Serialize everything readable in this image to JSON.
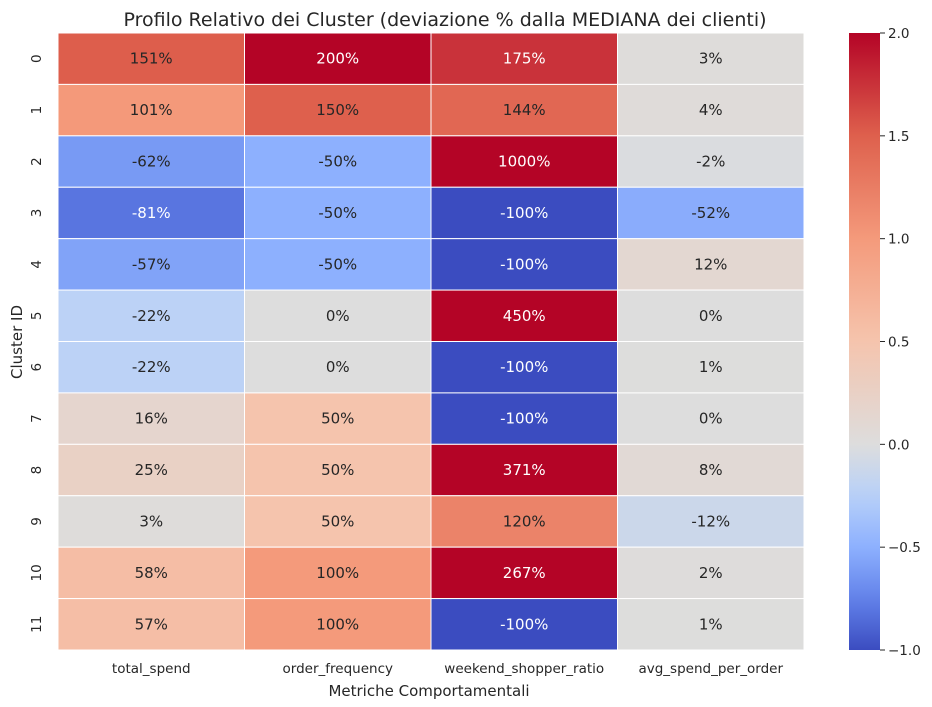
{
  "chart_data": {
    "type": "heatmap",
    "title": "Profilo Relativo dei Cluster (deviazione % dalla MEDIANA dei clienti)",
    "xlabel": "Metriche Comportamentali",
    "ylabel": "Cluster ID",
    "columns": [
      "total_spend",
      "order_frequency",
      "weekend_shopper_ratio",
      "avg_spend_per_order"
    ],
    "rows": [
      "0",
      "1",
      "2",
      "3",
      "4",
      "5",
      "6",
      "7",
      "8",
      "9",
      "10",
      "11"
    ],
    "values": [
      [
        1.51,
        2.0,
        1.75,
        0.03
      ],
      [
        1.01,
        1.5,
        1.44,
        0.04
      ],
      [
        -0.62,
        -0.5,
        10.0,
        -0.02
      ],
      [
        -0.81,
        -0.5,
        -1.0,
        -0.52
      ],
      [
        -0.57,
        -0.5,
        -1.0,
        0.12
      ],
      [
        -0.22,
        0.0,
        4.5,
        0.0
      ],
      [
        -0.22,
        0.0,
        -1.0,
        0.01
      ],
      [
        0.16,
        0.5,
        -1.0,
        0.0
      ],
      [
        0.25,
        0.5,
        3.71,
        0.08
      ],
      [
        0.03,
        0.5,
        1.2,
        -0.12
      ],
      [
        0.58,
        1.0,
        2.67,
        0.02
      ],
      [
        0.57,
        1.0,
        -1.0,
        0.01
      ]
    ],
    "annotations": [
      [
        "151%",
        "200%",
        "175%",
        "3%"
      ],
      [
        "101%",
        "150%",
        "144%",
        "4%"
      ],
      [
        "-62%",
        "-50%",
        "1000%",
        "-2%"
      ],
      [
        "-81%",
        "-50%",
        "-100%",
        "-52%"
      ],
      [
        "-57%",
        "-50%",
        "-100%",
        "12%"
      ],
      [
        "-22%",
        "0%",
        "450%",
        "0%"
      ],
      [
        "-22%",
        "0%",
        "-100%",
        "1%"
      ],
      [
        "16%",
        "50%",
        "-100%",
        "0%"
      ],
      [
        "25%",
        "50%",
        "371%",
        "8%"
      ],
      [
        "3%",
        "50%",
        "120%",
        "-12%"
      ],
      [
        "58%",
        "100%",
        "267%",
        "2%"
      ],
      [
        "57%",
        "100%",
        "-100%",
        "1%"
      ]
    ],
    "color_scale": {
      "colormap": "coolwarm",
      "vmin": -1.0,
      "vmax": 2.0,
      "center": 0.0,
      "ticks": [
        2.0,
        1.5,
        1.0,
        0.5,
        0.0,
        -0.5,
        -1.0
      ],
      "tick_labels": [
        "2.0",
        "1.5",
        "1.0",
        "0.5",
        "0.0",
        "−0.5",
        "−1.0"
      ]
    },
    "grid": false
  }
}
